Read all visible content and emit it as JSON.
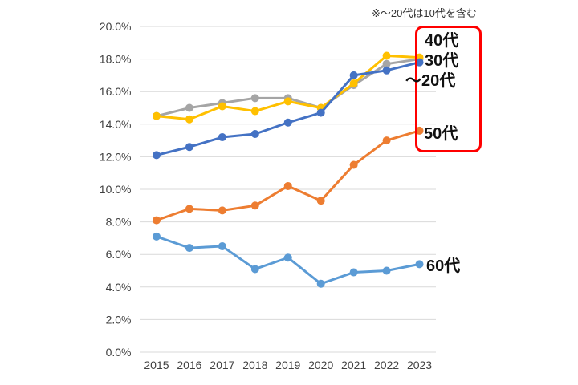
{
  "note": "※～20代は10代を含む",
  "annotation": {
    "box_color": "#FF0000",
    "box_groups": [
      "40代",
      "30代",
      "～20代",
      "50代"
    ]
  },
  "chart_data": {
    "type": "line",
    "title": "",
    "xlabel": "",
    "ylabel": "",
    "grid": true,
    "grid_color": "#D9D9D9",
    "legend_position": "inline-right-of-last-point",
    "ylim": [
      0,
      20
    ],
    "yticks": [
      0,
      2,
      4,
      6,
      8,
      10,
      12,
      14,
      16,
      18,
      20
    ],
    "ytick_labels": [
      "0.0%",
      "2.0%",
      "4.0%",
      "6.0%",
      "8.0%",
      "10.0%",
      "12.0%",
      "14.0%",
      "16.0%",
      "18.0%",
      "20.0%"
    ],
    "categories": [
      "2015",
      "2016",
      "2017",
      "2018",
      "2019",
      "2020",
      "2021",
      "2022",
      "2023"
    ],
    "series": [
      {
        "name": "30代",
        "color": "#A5A5A5",
        "values": [
          14.5,
          15.0,
          15.3,
          15.6,
          15.6,
          15.0,
          16.4,
          17.7,
          18.0
        ]
      },
      {
        "name": "40代",
        "color": "#FFC000",
        "values": [
          14.5,
          14.3,
          15.1,
          14.8,
          15.4,
          15.0,
          16.5,
          18.2,
          18.1
        ]
      },
      {
        "name": "～20代",
        "color": "#4472C4",
        "values": [
          12.1,
          12.6,
          13.2,
          13.4,
          14.1,
          14.7,
          17.0,
          17.3,
          17.8
        ]
      },
      {
        "name": "50代",
        "color": "#ED7D31",
        "values": [
          8.1,
          8.8,
          8.7,
          9.0,
          10.2,
          9.3,
          11.5,
          13.0,
          13.6
        ]
      },
      {
        "name": "60代",
        "color": "#5B9BD5",
        "values": [
          7.1,
          6.4,
          6.5,
          5.1,
          5.8,
          4.2,
          4.9,
          5.0,
          5.4
        ]
      }
    ]
  }
}
